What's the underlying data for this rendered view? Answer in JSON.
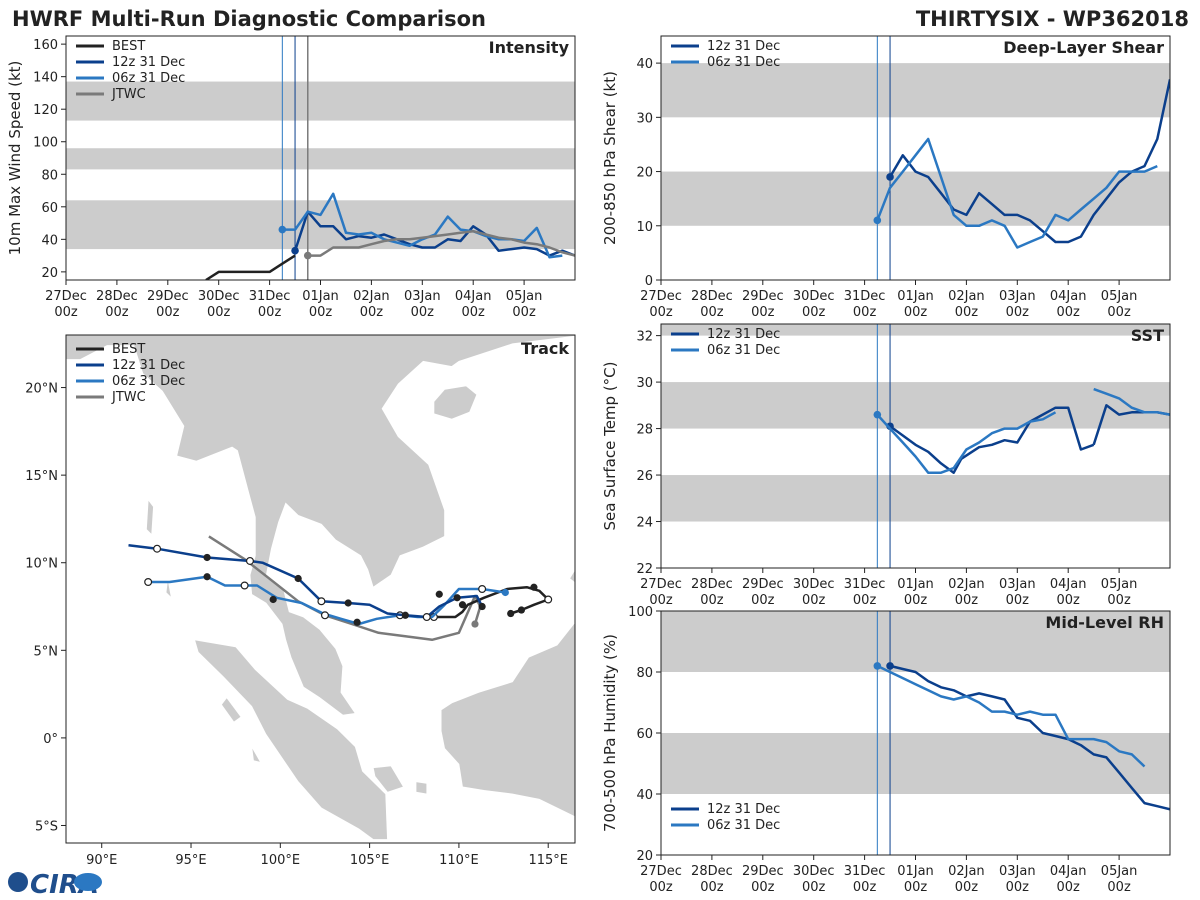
{
  "header": {
    "title_left": "HWRF Multi-Run Diagnostic Comparison",
    "title_right": "THIRTYSIX - WP362018"
  },
  "logo": {
    "text": "CIRA"
  },
  "colors": {
    "best": "#222222",
    "run12": "#0b3f8c",
    "run06": "#2b78c2",
    "jtwc": "#7a7a7a",
    "band": "#cccccc",
    "land": "#cccccc",
    "vline12": "#0b3f8c",
    "vline06": "#2b78c2",
    "vline_jtwc": "#7a7a7a"
  },
  "time_axis": {
    "xlim": [
      0,
      10
    ],
    "ticks": [
      0,
      1,
      2,
      3,
      4,
      5,
      6,
      7,
      8,
      9
    ],
    "tick_labels": [
      [
        "27Dec",
        "00z"
      ],
      [
        "28Dec",
        "00z"
      ],
      [
        "29Dec",
        "00z"
      ],
      [
        "30Dec",
        "00z"
      ],
      [
        "31Dec",
        "00z"
      ],
      [
        "01Jan",
        "00z"
      ],
      [
        "02Jan",
        "00z"
      ],
      [
        "03Jan",
        "00z"
      ],
      [
        "04Jan",
        "00z"
      ],
      [
        "05Jan",
        "00z"
      ]
    ],
    "init_06z": 4.25,
    "init_12z": 4.5,
    "jtwc_vline": 4.75
  },
  "chart_data": [
    {
      "id": "intensity",
      "type": "line",
      "title": "Intensity",
      "ylabel": "10m Max Wind Speed (kt)",
      "ylim": [
        15,
        165
      ],
      "yticks": [
        20,
        40,
        60,
        80,
        100,
        120,
        140,
        160
      ],
      "bands": [
        [
          34,
          64
        ],
        [
          83,
          96
        ],
        [
          113,
          137
        ]
      ],
      "legend": [
        "BEST",
        "12z 31 Dec",
        "06z 31 Dec",
        "JTWC"
      ],
      "series": [
        {
          "name": "BEST",
          "color_key": "best",
          "x": [
            2.75,
            3.0,
            3.25,
            3.5,
            3.75,
            4.0,
            4.25,
            4.5
          ],
          "y": [
            15,
            20,
            20,
            20,
            20,
            20,
            25,
            30
          ]
        },
        {
          "name": "12z 31 Dec",
          "color_key": "run12",
          "x": [
            4.5,
            4.75,
            5.0,
            5.25,
            5.5,
            5.75,
            6.0,
            6.25,
            6.5,
            6.75,
            7.0,
            7.25,
            7.5,
            7.75,
            8.0,
            8.25,
            8.5,
            8.75,
            9.0,
            9.25,
            9.5,
            9.75,
            10.0
          ],
          "y": [
            33,
            57,
            48,
            48,
            40,
            42,
            41,
            43,
            40,
            37,
            35,
            35,
            40,
            39,
            48,
            43,
            33,
            34,
            35,
            34,
            30,
            33,
            30
          ],
          "marker": [
            4.5,
            33
          ]
        },
        {
          "name": "06z 31 Dec",
          "color_key": "run06",
          "x": [
            4.25,
            4.5,
            4.75,
            5.0,
            5.25,
            5.5,
            5.75,
            6.0,
            6.25,
            6.5,
            6.75,
            7.0,
            7.25,
            7.5,
            7.75,
            8.0,
            8.25,
            8.5,
            8.75,
            9.0,
            9.25,
            9.5,
            9.75
          ],
          "y": [
            46,
            46,
            57,
            55,
            68,
            44,
            43,
            44,
            40,
            38,
            36,
            40,
            43,
            54,
            46,
            45,
            42,
            40,
            40,
            39,
            47,
            29,
            30
          ],
          "marker": [
            4.25,
            46
          ]
        },
        {
          "name": "JTWC",
          "color_key": "jtwc",
          "x": [
            4.75,
            5.0,
            5.25,
            5.5,
            5.75,
            6.0,
            6.25,
            6.5,
            6.75,
            7.0,
            7.25,
            7.5,
            7.75,
            8.0,
            8.25,
            8.5,
            8.75,
            9.0,
            9.25,
            9.5,
            9.75,
            10.0
          ],
          "y": [
            30,
            30,
            35,
            35,
            35,
            37,
            39,
            40,
            40,
            41,
            42,
            43,
            44,
            45,
            43,
            41,
            40,
            38,
            37,
            35,
            32,
            30
          ],
          "marker": [
            4.75,
            30
          ]
        }
      ]
    },
    {
      "id": "shear",
      "type": "line",
      "title": "Deep-Layer Shear",
      "ylabel": "200-850 hPa Shear (kt)",
      "ylim": [
        0,
        45
      ],
      "yticks": [
        0,
        10,
        20,
        30,
        40
      ],
      "bands": [
        [
          10,
          20
        ],
        [
          30,
          40
        ]
      ],
      "legend": [
        "12z 31 Dec",
        "06z 31 Dec"
      ],
      "series": [
        {
          "name": "12z 31 Dec",
          "color_key": "run12",
          "x": [
            4.5,
            4.75,
            5.0,
            5.25,
            5.5,
            5.75,
            6.0,
            6.25,
            6.5,
            6.75,
            7.0,
            7.25,
            7.5,
            7.75,
            8.0,
            8.25,
            8.5,
            8.75,
            9.0,
            9.25,
            9.5,
            9.75,
            10.0
          ],
          "y": [
            19,
            23,
            20,
            19,
            16,
            13,
            12,
            16,
            14,
            12,
            12,
            11,
            9,
            7,
            7,
            8,
            12,
            15,
            18,
            20,
            21,
            26,
            37
          ],
          "marker": [
            4.5,
            19
          ]
        },
        {
          "name": "06z 31 Dec",
          "color_key": "run06",
          "x": [
            4.25,
            4.5,
            4.75,
            5.0,
            5.25,
            5.5,
            5.75,
            6.0,
            6.25,
            6.5,
            6.75,
            7.0,
            7.25,
            7.5,
            7.75,
            8.0,
            8.25,
            8.5,
            8.75,
            9.0,
            9.25,
            9.5,
            9.75
          ],
          "y": [
            11,
            17,
            20,
            23,
            26,
            19,
            12,
            10,
            10,
            11,
            10,
            6,
            7,
            8,
            12,
            11,
            13,
            15,
            17,
            20,
            20,
            20,
            21
          ],
          "marker": [
            4.25,
            11
          ]
        }
      ]
    },
    {
      "id": "sst",
      "type": "line",
      "title": "SST",
      "ylabel": "Sea Surface Temp (°C)",
      "ylim": [
        22,
        32.5
      ],
      "yticks": [
        22,
        24,
        26,
        28,
        30,
        32
      ],
      "bands": [
        [
          24,
          26
        ],
        [
          28,
          30
        ],
        [
          32,
          32.5
        ]
      ],
      "legend": [
        "12z 31 Dec",
        "06z 31 Dec"
      ],
      "series": [
        {
          "name": "12z 31 Dec",
          "color_key": "run12",
          "segments": [
            {
              "x": [
                4.5,
                4.75,
                5.0,
                5.25,
                5.5,
                5.75,
                5.9,
                6.25,
                6.5,
                6.75,
                7.0,
                7.25,
                7.5,
                7.75,
                8.0,
                8.25,
                8.5
              ],
              "y": [
                28.1,
                27.7,
                27.3,
                27.0,
                26.5,
                26.1,
                26.7,
                27.2,
                27.3,
                27.5,
                27.4,
                28.3,
                28.6,
                28.9,
                28.9,
                27.1,
                27.3
              ]
            },
            {
              "x": [
                8.5,
                8.75,
                9.0,
                9.25,
                9.5,
                9.75,
                10.0
              ],
              "y": [
                27.3,
                29.0,
                28.6,
                28.7,
                28.7,
                28.7,
                28.6
              ]
            }
          ],
          "marker": [
            4.5,
            28.1
          ]
        },
        {
          "name": "06z 31 Dec",
          "color_key": "run06",
          "segments": [
            {
              "x": [
                4.25,
                4.5,
                4.75,
                5.0,
                5.25,
                5.5,
                5.75,
                6.0,
                6.25,
                6.5,
                6.75,
                7.0,
                7.25,
                7.5,
                7.75
              ],
              "y": [
                28.6,
                28.0,
                27.4,
                26.8,
                26.1,
                26.1,
                26.3,
                27.1,
                27.4,
                27.8,
                28.0,
                28.0,
                28.3,
                28.4,
                28.7
              ]
            },
            {
              "x": [
                8.5,
                8.75,
                9.0,
                9.25,
                9.5,
                9.75,
                10.0
              ],
              "y": [
                29.7,
                29.5,
                29.3,
                28.9,
                28.7,
                28.7,
                28.6
              ]
            }
          ],
          "marker": [
            4.25,
            28.6
          ]
        }
      ]
    },
    {
      "id": "rh",
      "type": "line",
      "title": "Mid-Level RH",
      "ylabel": "700-500 hPa Humidity (%)",
      "ylim": [
        20,
        100
      ],
      "yticks": [
        20,
        40,
        60,
        80,
        100
      ],
      "bands": [
        [
          40,
          60
        ],
        [
          80,
          100
        ]
      ],
      "legend": [
        "12z 31 Dec",
        "06z 31 Dec"
      ],
      "series": [
        {
          "name": "12z 31 Dec",
          "color_key": "run12",
          "x": [
            4.5,
            4.75,
            5.0,
            5.25,
            5.5,
            5.75,
            6.0,
            6.25,
            6.5,
            6.75,
            7.0,
            7.25,
            7.5,
            7.75,
            8.0,
            8.25,
            8.5,
            8.75,
            9.0,
            9.25,
            9.5,
            9.75,
            10.0
          ],
          "y": [
            82,
            81,
            80,
            77,
            75,
            74,
            72,
            73,
            72,
            71,
            65,
            64,
            60,
            59,
            58,
            56,
            53,
            52,
            47,
            42,
            37,
            36,
            35
          ],
          "marker": [
            4.5,
            82
          ]
        },
        {
          "name": "06z 31 Dec",
          "color_key": "run06",
          "x": [
            4.25,
            4.5,
            4.75,
            5.0,
            5.25,
            5.5,
            5.75,
            6.0,
            6.25,
            6.5,
            6.75,
            7.0,
            7.25,
            7.5,
            7.75,
            8.0,
            8.25,
            8.5,
            8.75,
            9.0,
            9.25,
            9.5
          ],
          "y": [
            82,
            80,
            78,
            76,
            74,
            72,
            71,
            72,
            70,
            67,
            67,
            66,
            67,
            66,
            66,
            58,
            58,
            58,
            57,
            54,
            53,
            49
          ],
          "marker": [
            4.25,
            82
          ]
        }
      ]
    },
    {
      "id": "track",
      "type": "scatter",
      "title": "Track",
      "xlim": [
        88,
        116.5
      ],
      "ylim": [
        -6,
        23
      ],
      "xticks": [
        90,
        95,
        100,
        105,
        110,
        115
      ],
      "xtick_labels": [
        "90°E",
        "95°E",
        "100°E",
        "105°E",
        "110°E",
        "115°E"
      ],
      "yticks": [
        -5,
        0,
        5,
        10,
        15,
        20
      ],
      "ytick_labels": [
        "5°S",
        "0°",
        "5°N",
        "10°N",
        "15°N",
        "20°N"
      ],
      "legend": [
        "BEST",
        "12z 31 Dec",
        "06z 31 Dec",
        "JTWC"
      ],
      "series": [
        {
          "name": "BEST",
          "color_key": "best",
          "lon": [
            112.9,
            113.5,
            114.2,
            115.0,
            114.5,
            113.8,
            112.7,
            111.4,
            110.5,
            110.2,
            109.8,
            109.2,
            108.6
          ],
          "lat": [
            7.1,
            7.3,
            7.6,
            7.9,
            8.4,
            8.6,
            8.5,
            8.0,
            7.6,
            7.2,
            6.9,
            6.9,
            6.9
          ],
          "filled_markers": [
            [
              112.9,
              7.1
            ],
            [
              113.5,
              7.3
            ],
            [
              114.2,
              8.6
            ],
            [
              110.2,
              7.6
            ]
          ],
          "open_markers": [
            [
              115.0,
              7.9
            ],
            [
              108.6,
              6.9
            ]
          ]
        },
        {
          "name": "12z 31 Dec",
          "color_key": "run12",
          "lon": [
            111.3,
            111.0,
            109.9,
            108.9,
            108.2,
            107.0,
            106.0,
            105.0,
            103.8,
            102.3,
            101.0,
            99.0,
            98.3,
            95.9,
            93.1,
            91.5
          ],
          "lat": [
            7.5,
            8.1,
            8.0,
            7.5,
            6.9,
            7.0,
            7.1,
            7.6,
            7.7,
            7.8,
            9.1,
            10.0,
            10.1,
            10.3,
            10.8,
            11.0
          ],
          "filled_markers": [
            [
              111.3,
              7.5
            ],
            [
              109.9,
              8.0
            ],
            [
              107.0,
              7.0
            ],
            [
              103.8,
              7.7
            ],
            [
              101.0,
              9.1
            ],
            [
              95.9,
              10.3
            ]
          ],
          "open_markers": [
            [
              108.2,
              6.9
            ],
            [
              102.3,
              7.8
            ],
            [
              98.3,
              10.1
            ],
            [
              93.1,
              10.8
            ]
          ]
        },
        {
          "name": "06z 31 Dec",
          "color_key": "run06",
          "lon": [
            112.6,
            111.3,
            110.0,
            109.2,
            108.5,
            107.7,
            106.7,
            105.4,
            104.4,
            103.4,
            102.4,
            101.2,
            99.8,
            98.7,
            97.8,
            96.9,
            95.9,
            93.8,
            92.6
          ],
          "lat": [
            8.3,
            8.5,
            8.5,
            7.6,
            6.9,
            6.9,
            7.0,
            6.8,
            6.5,
            6.8,
            7.1,
            7.7,
            8.0,
            8.7,
            8.7,
            8.7,
            9.2,
            8.9,
            8.9
          ],
          "filled_markers": [
            [
              112.6,
              8.3
            ],
            [
              108.9,
              8.2
            ],
            [
              104.3,
              6.6
            ],
            [
              99.6,
              7.9
            ],
            [
              95.9,
              9.2
            ]
          ],
          "open_markers": [
            [
              111.3,
              8.5
            ],
            [
              106.7,
              7.0
            ],
            [
              102.5,
              7.0
            ],
            [
              98.0,
              8.7
            ],
            [
              92.6,
              8.9
            ]
          ]
        },
        {
          "name": "JTWC",
          "color_key": "jtwc",
          "lon": [
            110.9,
            111.2,
            110.9,
            110.0,
            108.5,
            107.0,
            105.5,
            104.0,
            102.5,
            101.0,
            99.5,
            98.0,
            96.0
          ],
          "lat": [
            6.5,
            7.5,
            8.1,
            6.0,
            5.6,
            5.8,
            6.0,
            6.5,
            7.0,
            7.8,
            9.0,
            10.2,
            11.5
          ],
          "filled_markers": [
            [
              110.9,
              6.5
            ]
          ],
          "open_markers": []
        }
      ]
    }
  ]
}
